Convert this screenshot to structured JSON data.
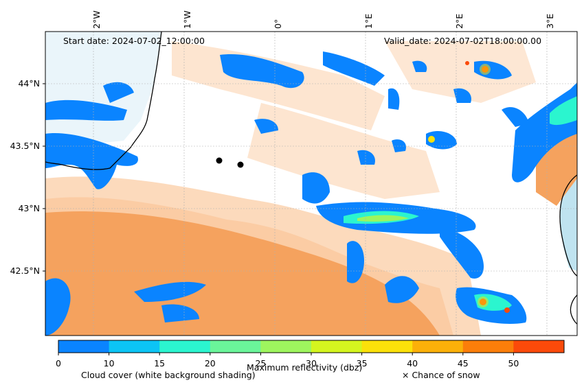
{
  "header": {
    "start_date": "Start date: 2024-07-02_12:00:00",
    "valid_date": "Valid_date: 2024-07-02T18:00:00.00"
  },
  "axes": {
    "lon_labels": [
      "2°W",
      "1°W",
      "0°",
      "1°E",
      "2°E",
      "3°E"
    ],
    "lat_labels": [
      "44°N",
      "43.5°N",
      "43°N",
      "42.5°N"
    ]
  },
  "colorbar": {
    "ticks": [
      "0",
      "10",
      "15",
      "20",
      "25",
      "30",
      "35",
      "40",
      "45",
      "50"
    ],
    "colors": [
      "#0a84ff",
      "#0cc4f5",
      "#2bf5cf",
      "#6af59a",
      "#9ef55e",
      "#d4f51f",
      "#fbe10a",
      "#fbb009",
      "#fb7e0a",
      "#fb4a0a"
    ],
    "label": "Maximum reflectivity (dbz)"
  },
  "legend": {
    "cloud_cover": "Cloud cover (white background shading)",
    "snow": "× Chance of snow"
  },
  "map_colors": {
    "land_orange": "#f5a25e",
    "land_light": "#fbd3b0",
    "sea_light": "#d4eef7",
    "cloud_blue": "#0a84ff",
    "cyan": "#2bf5cf",
    "coast": "#000000"
  }
}
